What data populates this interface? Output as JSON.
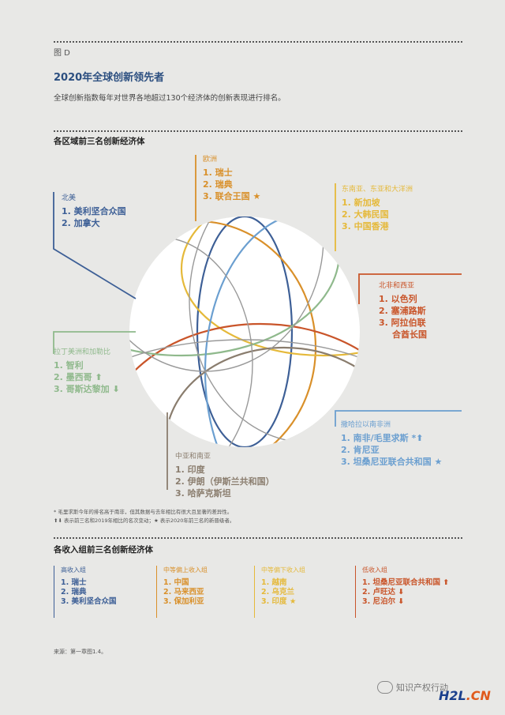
{
  "figure_label": "图 D",
  "title": "2020年全球创新领先者",
  "description": "全球创新指数每年对世界各地超过130个经济体的创新表现进行排名。",
  "regional_section_title": "各区域前三名创新经济体",
  "regions": {
    "north_america": {
      "name": "北美",
      "color": "#3d5f96",
      "ranks": [
        "1. 美利坚合众国",
        "2. 加拿大"
      ]
    },
    "europe": {
      "name": "欧洲",
      "color": "#d9902a",
      "ranks": [
        "1. 瑞士",
        "2. 瑞典",
        "3. 联合王国 ★"
      ]
    },
    "sea": {
      "name": "东南亚、东亚和大洋洲",
      "color": "#e5b93a",
      "ranks": [
        "1. 新加坡",
        "2. 大韩民国",
        "3. 中国香港"
      ]
    },
    "nafrica": {
      "name": "北非和西亚",
      "color": "#c9552a",
      "ranks": [
        "1. 以色列",
        "2. 塞浦路斯",
        "3. 阿拉伯联",
        "合酋长国"
      ]
    },
    "latam": {
      "name": "拉丁美洲和加勒比",
      "color": "#8fb98c",
      "ranks": [
        "1. 智利",
        "2. 墨西哥 ⬆",
        "3. 哥斯达黎加 ⬇"
      ]
    },
    "ssa": {
      "name": "撒哈拉以南非洲",
      "color": "#6b9fd0",
      "ranks": [
        "1. 南非/毛里求斯 *⬆",
        "2. 肯尼亚",
        "3. 坦桑尼亚联合共和国 ★"
      ]
    },
    "csa": {
      "name": "中亚和南亚",
      "color": "#8a7d6e",
      "ranks": [
        "1. 印度",
        "2. 伊朗（伊斯兰共和国）",
        "3. 哈萨克斯坦"
      ]
    }
  },
  "notes": [
    "* 毛里求斯今年的排名高于南非，但其数据与去年相比有很大且显著的差异性。",
    "⬆⬇ 表示前三名和2019年相比的名次变动；★ 表示2020年前三名的新晋级者。"
  ],
  "income_section_title": "各收入组前三名创新经济体",
  "income_groups": [
    {
      "name": "高收入组",
      "color": "#3d5f96",
      "ranks": [
        "1. 瑞士",
        "2. 瑞典",
        "3. 美利坚合众国"
      ]
    },
    {
      "name": "中等偏上收入组",
      "color": "#d9902a",
      "ranks": [
        "1. 中国",
        "2. 马来西亚",
        "3. 保加利亚"
      ]
    },
    {
      "name": "中等偏下收入组",
      "color": "#e5b93a",
      "ranks": [
        "1. 越南",
        "2. 乌克兰",
        "3. 印度 ★"
      ]
    },
    {
      "name": "低收入组",
      "color": "#c9552a",
      "ranks": [
        "1. 坦桑尼亚联合共和国 ⬆",
        "2. 卢旺达 ⬇",
        "3. 尼泊尔 ⬇"
      ]
    }
  ],
  "source": "来源：第一章图1.4。",
  "watermark": "知识产权行动",
  "brand": {
    "main": "H2L",
    "suffix": ".CN"
  }
}
